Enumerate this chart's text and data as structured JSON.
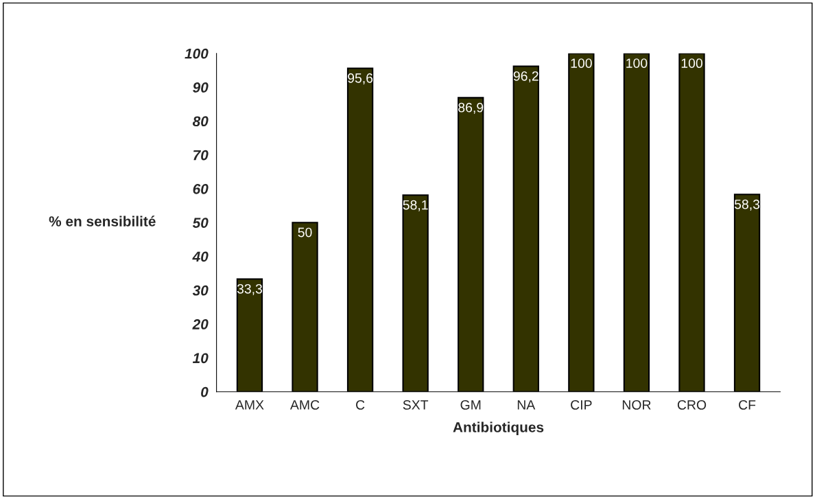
{
  "chart_data": {
    "type": "bar",
    "xlabel": "Antibiotiques",
    "ylabel": "% en sensibilité",
    "categories": [
      "AMX",
      "AMC",
      "C",
      "SXT",
      "GM",
      "NA",
      "CIP",
      "NOR",
      "CRO",
      "CF"
    ],
    "values": [
      33.3,
      50,
      95.6,
      58.1,
      86.9,
      96.2,
      100,
      100,
      100,
      58.3
    ],
    "value_labels": [
      "33,3",
      "50",
      "95,6",
      "58,1",
      "86,9",
      "96,2",
      "100",
      "100",
      "100",
      "58,3"
    ],
    "color": "#333300",
    "ylim": [
      0,
      100
    ],
    "yticks": [
      0,
      10,
      20,
      30,
      40,
      50,
      60,
      70,
      80,
      90,
      100
    ],
    "grid": false,
    "legend": false
  }
}
